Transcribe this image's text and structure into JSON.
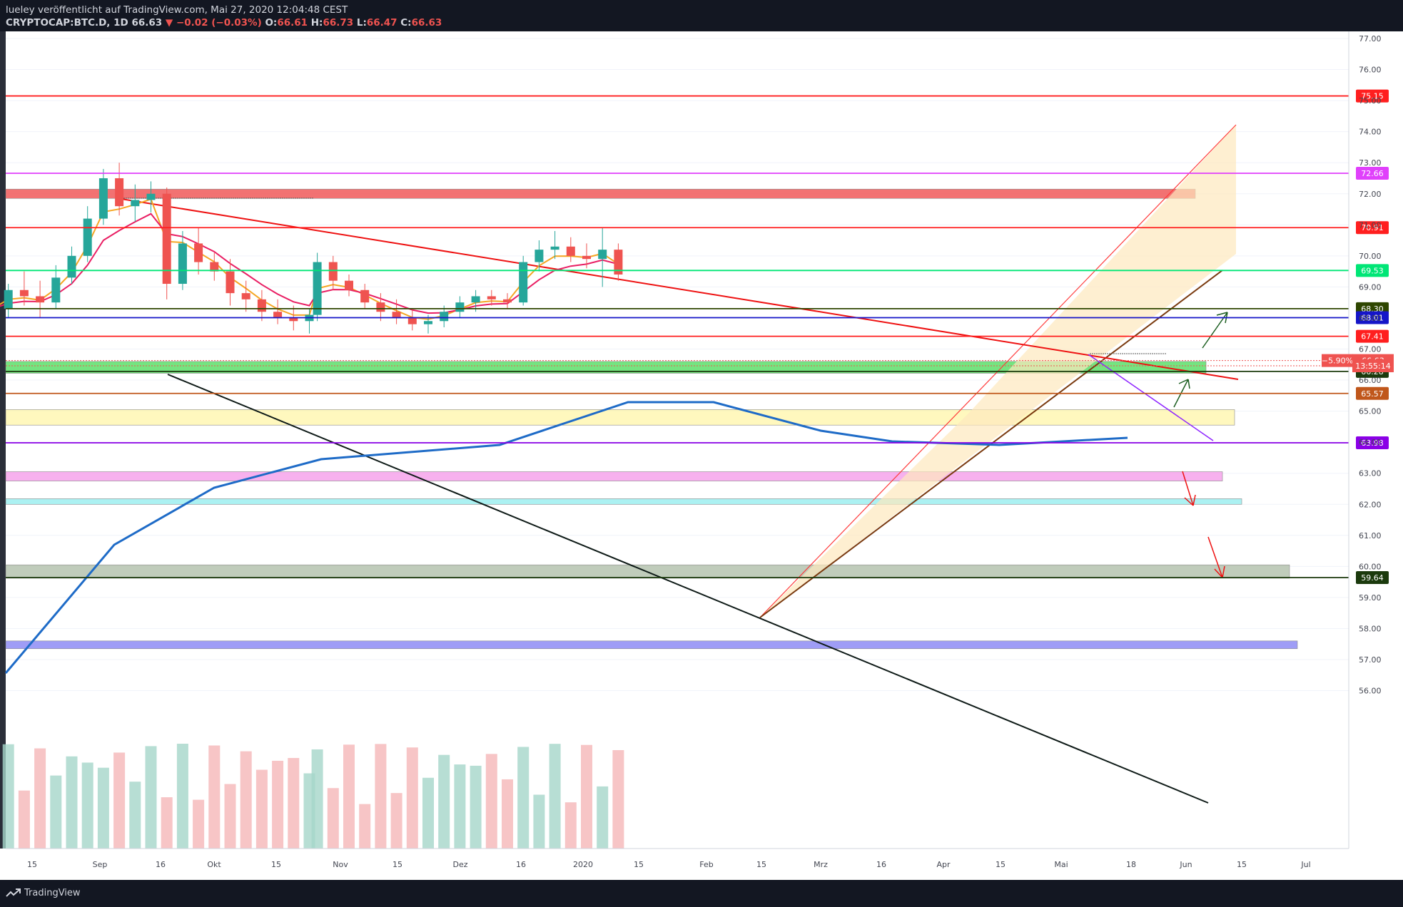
{
  "header": {
    "publish_line": "lueley veröffentlicht auf TradingView.com, Mai 27, 2020 12:04:48 CEST",
    "symbol": "CRYPTOCAP:BTC.D, 1D",
    "last": "66.63",
    "change": "▼ −0.02 (−0.03%)",
    "o_label": "O:",
    "o_value": "66.61",
    "h_label": "H:",
    "h_value": "66.73",
    "l_label": "L:",
    "l_value": "66.47",
    "c_label": "C:",
    "c_value": "66.63"
  },
  "footer": {
    "brand": "TradingView"
  },
  "colors": {
    "up": "#26a69a",
    "down": "#ef5350",
    "ema_fast": "#f5a623",
    "ema_slow": "#e91e63",
    "sma_long": "#1e6bc7",
    "axis_text": "#434651",
    "grid": "#f0f3fa"
  },
  "chart_data": {
    "type": "candlestick",
    "title": "",
    "xlabel": "",
    "ylabel": "",
    "ylim": [
      55.6,
      77.6
    ],
    "y_ticks": [
      "56.00",
      "57.00",
      "58.00",
      "59.00",
      "60.00",
      "61.00",
      "62.00",
      "63.00",
      "64.00",
      "65.00",
      "66.00",
      "67.00",
      "68.00",
      "69.00",
      "70.00",
      "71.00",
      "72.00",
      "73.00",
      "74.00",
      "75.00",
      "76.00",
      "77.00"
    ],
    "x_ticks": [
      "15",
      "Sep",
      "16",
      "Okt",
      "15",
      "Nov",
      "15",
      "Dez",
      "16",
      "2020",
      "15",
      "Feb",
      "15",
      "Mrz",
      "16",
      "Apr",
      "15",
      "Mai",
      "18",
      "Jun",
      "15",
      "Jul"
    ],
    "horizontal_levels": [
      {
        "value": 75.15,
        "label": "75.15",
        "color": "#ff1f1f"
      },
      {
        "value": 72.66,
        "label": "72.66",
        "color": "#e040fb"
      },
      {
        "value": 70.91,
        "label": "70.91",
        "color": "#ff1f1f"
      },
      {
        "value": 69.53,
        "label": "69.53",
        "color": "#00e676"
      },
      {
        "value": 68.3,
        "label": "68.30",
        "color": "#2e4600"
      },
      {
        "value": 68.01,
        "label": "68.01",
        "color": "#1515c8"
      },
      {
        "value": 67.41,
        "label": "67.41",
        "color": "#ff1f1f"
      },
      {
        "value": 66.28,
        "label": "66.28",
        "color": "#1b3a0d"
      },
      {
        "value": 65.57,
        "label": "65.57",
        "color": "#c0571b"
      },
      {
        "value": 63.98,
        "label": "63.98",
        "color": "#8a00e6"
      },
      {
        "value": 59.64,
        "label": "59.64",
        "color": "#1b3a0d"
      }
    ],
    "price_tags": [
      {
        "value": 66.63,
        "label": "66.63",
        "change": "−5.90%",
        "color": "#ef5350"
      },
      {
        "value": 66.46,
        "label": "13:55:14",
        "color": "#ef5350"
      }
    ],
    "zones": [
      {
        "from": 71.85,
        "to": 72.15,
        "color": "#f05a5a",
        "label": "resistance"
      },
      {
        "from": 66.22,
        "to": 66.6,
        "color": "#5ee06a",
        "label": "support"
      },
      {
        "from": 64.55,
        "to": 65.05,
        "color": "#fff7b3",
        "label": "support-2"
      },
      {
        "from": 62.75,
        "to": 63.05,
        "color": "#f6a4ec",
        "label": "support-3"
      },
      {
        "from": 62.0,
        "to": 62.18,
        "color": "#9eeff0",
        "label": "support-4"
      },
      {
        "from": 59.62,
        "to": 60.05,
        "color": "#b6c4b0",
        "label": "zone-60"
      },
      {
        "from": 57.35,
        "to": 57.6,
        "color": "#8f8cf5",
        "label": "volume-band"
      }
    ],
    "candles": [
      {
        "date": "2019-08-05",
        "o": 67.9,
        "h": 68.6,
        "l": 67.5,
        "c": 68.3
      },
      {
        "date": "2019-08-09",
        "o": 68.3,
        "h": 69.1,
        "l": 68.0,
        "c": 68.9
      },
      {
        "date": "2019-08-13",
        "o": 68.9,
        "h": 69.5,
        "l": 68.4,
        "c": 68.7
      },
      {
        "date": "2019-08-17",
        "o": 68.7,
        "h": 69.2,
        "l": 68.0,
        "c": 68.5
      },
      {
        "date": "2019-08-21",
        "o": 68.5,
        "h": 69.7,
        "l": 68.3,
        "c": 69.3
      },
      {
        "date": "2019-08-25",
        "o": 69.3,
        "h": 70.3,
        "l": 69.1,
        "c": 70.0
      },
      {
        "date": "2019-08-29",
        "o": 70.0,
        "h": 71.6,
        "l": 69.8,
        "c": 71.2
      },
      {
        "date": "2019-09-02",
        "o": 71.2,
        "h": 72.8,
        "l": 71.0,
        "c": 72.5
      },
      {
        "date": "2019-09-06",
        "o": 72.5,
        "h": 73.0,
        "l": 71.3,
        "c": 71.6
      },
      {
        "date": "2019-09-10",
        "o": 71.6,
        "h": 72.3,
        "l": 71.1,
        "c": 71.8
      },
      {
        "date": "2019-09-14",
        "o": 71.8,
        "h": 72.4,
        "l": 71.4,
        "c": 72.0
      },
      {
        "date": "2019-09-18",
        "o": 72.0,
        "h": 72.2,
        "l": 68.6,
        "c": 69.1
      },
      {
        "date": "2019-09-22",
        "o": 69.1,
        "h": 70.8,
        "l": 68.9,
        "c": 70.4
      },
      {
        "date": "2019-09-26",
        "o": 70.4,
        "h": 70.9,
        "l": 69.4,
        "c": 69.8
      },
      {
        "date": "2019-09-30",
        "o": 69.8,
        "h": 70.1,
        "l": 69.2,
        "c": 69.5
      },
      {
        "date": "2019-10-04",
        "o": 69.5,
        "h": 69.9,
        "l": 68.4,
        "c": 68.8
      },
      {
        "date": "2019-10-08",
        "o": 68.8,
        "h": 69.2,
        "l": 68.2,
        "c": 68.6
      },
      {
        "date": "2019-10-12",
        "o": 68.6,
        "h": 68.9,
        "l": 67.9,
        "c": 68.2
      },
      {
        "date": "2019-10-16",
        "o": 68.2,
        "h": 68.6,
        "l": 67.8,
        "c": 68.0
      },
      {
        "date": "2019-10-20",
        "o": 68.0,
        "h": 68.4,
        "l": 67.6,
        "c": 67.9
      },
      {
        "date": "2019-10-24",
        "o": 67.9,
        "h": 68.3,
        "l": 67.5,
        "c": 68.1
      },
      {
        "date": "2019-10-26",
        "o": 68.1,
        "h": 70.1,
        "l": 67.9,
        "c": 69.8
      },
      {
        "date": "2019-10-30",
        "o": 69.8,
        "h": 70.0,
        "l": 68.9,
        "c": 69.2
      },
      {
        "date": "2019-11-03",
        "o": 69.2,
        "h": 69.4,
        "l": 68.7,
        "c": 68.9
      },
      {
        "date": "2019-11-07",
        "o": 68.9,
        "h": 69.1,
        "l": 68.3,
        "c": 68.5
      },
      {
        "date": "2019-11-11",
        "o": 68.5,
        "h": 68.8,
        "l": 67.9,
        "c": 68.2
      },
      {
        "date": "2019-11-15",
        "o": 68.2,
        "h": 68.6,
        "l": 67.8,
        "c": 68.0
      },
      {
        "date": "2019-11-19",
        "o": 68.0,
        "h": 68.3,
        "l": 67.6,
        "c": 67.8
      },
      {
        "date": "2019-11-23",
        "o": 67.8,
        "h": 68.1,
        "l": 67.5,
        "c": 67.9
      },
      {
        "date": "2019-11-27",
        "o": 67.9,
        "h": 68.4,
        "l": 67.7,
        "c": 68.2
      },
      {
        "date": "2019-12-01",
        "o": 68.2,
        "h": 68.7,
        "l": 68.0,
        "c": 68.5
      },
      {
        "date": "2019-12-05",
        "o": 68.5,
        "h": 68.9,
        "l": 68.2,
        "c": 68.7
      },
      {
        "date": "2019-12-09",
        "o": 68.7,
        "h": 68.9,
        "l": 68.4,
        "c": 68.6
      },
      {
        "date": "2019-12-13",
        "o": 68.6,
        "h": 68.8,
        "l": 68.3,
        "c": 68.5
      },
      {
        "date": "2019-12-17",
        "o": 68.5,
        "h": 70.0,
        "l": 68.4,
        "c": 69.8
      },
      {
        "date": "2019-12-21",
        "o": 69.8,
        "h": 70.5,
        "l": 69.5,
        "c": 70.2
      },
      {
        "date": "2019-12-25",
        "o": 70.2,
        "h": 70.8,
        "l": 69.9,
        "c": 70.3
      },
      {
        "date": "2019-12-29",
        "o": 70.3,
        "h": 70.6,
        "l": 69.8,
        "c": 70.0
      },
      {
        "date": "2020-01-02",
        "o": 70.0,
        "h": 70.4,
        "l": 69.6,
        "c": 69.9
      },
      {
        "date": "2020-01-06",
        "o": 69.9,
        "h": 70.9,
        "l": 69.0,
        "c": 70.2
      },
      {
        "date": "2020-01-10",
        "o": 70.2,
        "h": 70.4,
        "l": 69.2,
        "c": 69.4
      }
    ],
    "volume": {
      "ylim": [
        0,
        100
      ],
      "note": "relative volume histogram with moving average"
    }
  }
}
